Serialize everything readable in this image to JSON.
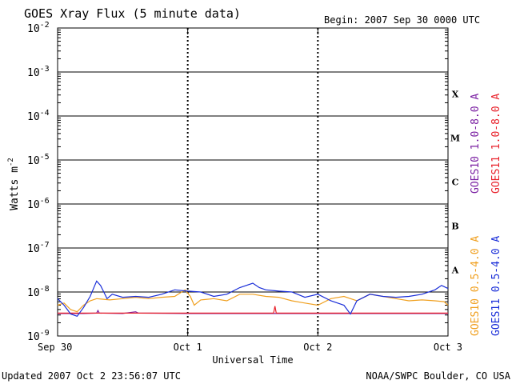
{
  "chart_data": {
    "type": "line",
    "title": "GOES Xray Flux (5 minute data)",
    "begin_label": "Begin:  2007 Sep 30 0000 UTC",
    "ylabel": "Watts m",
    "ylabel_sup": "-2",
    "xlabel": "Universal Time",
    "y_scale": "log",
    "ylim": [
      1e-09,
      0.01
    ],
    "xlim": [
      0,
      3
    ],
    "x_ticks": [
      {
        "x": 0,
        "label": "Sep 30"
      },
      {
        "x": 1,
        "label": "Oct 1"
      },
      {
        "x": 2,
        "label": "Oct 2"
      },
      {
        "x": 3,
        "label": "Oct 3"
      }
    ],
    "y_ticks": [
      {
        "base": "10",
        "exp": "-2",
        "value": -2
      },
      {
        "base": "10",
        "exp": "-3",
        "value": -3
      },
      {
        "base": "10",
        "exp": "-4",
        "value": -4
      },
      {
        "base": "10",
        "exp": "-5",
        "value": -5
      },
      {
        "base": "10",
        "exp": "-6",
        "value": -6
      },
      {
        "base": "10",
        "exp": "-7",
        "value": -7
      },
      {
        "base": "10",
        "exp": "-8",
        "value": -8
      },
      {
        "base": "10",
        "exp": "-9",
        "value": -9
      }
    ],
    "flare_classes": [
      {
        "label": "X",
        "log_center": -3.5
      },
      {
        "label": "M",
        "log_center": -4.5
      },
      {
        "label": "C",
        "log_center": -5.5
      },
      {
        "label": "B",
        "log_center": -6.5
      },
      {
        "label": "A",
        "log_center": -7.5
      }
    ],
    "series": [
      {
        "name": "GOES10 1.0-8.0 A",
        "color": "#7a1fa2",
        "points": [
          [
            0.0,
            -8.49
          ],
          [
            0.2,
            -8.49
          ],
          [
            0.3,
            -8.48
          ],
          [
            0.31,
            -8.42
          ],
          [
            0.32,
            -8.48
          ],
          [
            0.5,
            -8.49
          ],
          [
            0.6,
            -8.45
          ],
          [
            0.62,
            -8.48
          ],
          [
            1.0,
            -8.49
          ],
          [
            1.5,
            -8.49
          ],
          [
            2.0,
            -8.49
          ],
          [
            2.5,
            -8.49
          ],
          [
            3.0,
            -8.49
          ]
        ]
      },
      {
        "name": "GOES11 1.0-8.0 A",
        "color": "#e8202a",
        "points": [
          [
            0.0,
            -8.48
          ],
          [
            0.5,
            -8.48
          ],
          [
            1.0,
            -8.48
          ],
          [
            1.5,
            -8.48
          ],
          [
            1.66,
            -8.48
          ],
          [
            1.67,
            -8.32
          ],
          [
            1.68,
            -8.48
          ],
          [
            2.0,
            -8.48
          ],
          [
            2.5,
            -8.48
          ],
          [
            3.0,
            -8.48
          ]
        ]
      },
      {
        "name": "GOES10 0.5-4.0 A",
        "color": "#f0a020",
        "points": [
          [
            0.0,
            -8.3
          ],
          [
            0.05,
            -8.25
          ],
          [
            0.1,
            -8.4
          ],
          [
            0.15,
            -8.45
          ],
          [
            0.2,
            -8.3
          ],
          [
            0.25,
            -8.2
          ],
          [
            0.3,
            -8.15
          ],
          [
            0.4,
            -8.18
          ],
          [
            0.5,
            -8.15
          ],
          [
            0.6,
            -8.12
          ],
          [
            0.7,
            -8.15
          ],
          [
            0.8,
            -8.12
          ],
          [
            0.9,
            -8.1
          ],
          [
            0.98,
            -7.95
          ],
          [
            1.02,
            -8.1
          ],
          [
            1.05,
            -8.3
          ],
          [
            1.1,
            -8.18
          ],
          [
            1.2,
            -8.15
          ],
          [
            1.3,
            -8.2
          ],
          [
            1.4,
            -8.05
          ],
          [
            1.5,
            -8.05
          ],
          [
            1.6,
            -8.1
          ],
          [
            1.7,
            -8.12
          ],
          [
            1.8,
            -8.2
          ],
          [
            1.9,
            -8.25
          ],
          [
            2.0,
            -8.3
          ],
          [
            2.1,
            -8.15
          ],
          [
            2.2,
            -8.1
          ],
          [
            2.3,
            -8.2
          ],
          [
            2.4,
            -8.05
          ],
          [
            2.5,
            -8.1
          ],
          [
            2.6,
            -8.15
          ],
          [
            2.7,
            -8.2
          ],
          [
            2.8,
            -8.18
          ],
          [
            2.9,
            -8.2
          ],
          [
            2.97,
            -8.22
          ],
          [
            3.0,
            -8.3
          ]
        ]
      },
      {
        "name": "GOES11 0.5-4.0 A",
        "color": "#1a2ed8",
        "points": [
          [
            0.0,
            -8.15
          ],
          [
            0.05,
            -8.3
          ],
          [
            0.1,
            -8.5
          ],
          [
            0.15,
            -8.55
          ],
          [
            0.2,
            -8.35
          ],
          [
            0.25,
            -8.1
          ],
          [
            0.3,
            -7.75
          ],
          [
            0.33,
            -7.85
          ],
          [
            0.38,
            -8.15
          ],
          [
            0.42,
            -8.05
          ],
          [
            0.5,
            -8.12
          ],
          [
            0.6,
            -8.1
          ],
          [
            0.7,
            -8.12
          ],
          [
            0.8,
            -8.05
          ],
          [
            0.9,
            -7.95
          ],
          [
            1.0,
            -7.98
          ],
          [
            1.1,
            -8.0
          ],
          [
            1.2,
            -8.1
          ],
          [
            1.3,
            -8.05
          ],
          [
            1.4,
            -7.9
          ],
          [
            1.5,
            -7.8
          ],
          [
            1.55,
            -7.9
          ],
          [
            1.6,
            -7.95
          ],
          [
            1.7,
            -7.98
          ],
          [
            1.8,
            -8.0
          ],
          [
            1.9,
            -8.12
          ],
          [
            2.0,
            -8.05
          ],
          [
            2.1,
            -8.2
          ],
          [
            2.2,
            -8.3
          ],
          [
            2.25,
            -8.5
          ],
          [
            2.3,
            -8.2
          ],
          [
            2.4,
            -8.05
          ],
          [
            2.5,
            -8.1
          ],
          [
            2.6,
            -8.12
          ],
          [
            2.7,
            -8.1
          ],
          [
            2.8,
            -8.05
          ],
          [
            2.9,
            -7.95
          ],
          [
            2.95,
            -7.85
          ],
          [
            3.0,
            -7.92
          ]
        ]
      }
    ],
    "legend_placement": "right",
    "grid": "horizontal decades"
  },
  "footer": {
    "updated": "Updated 2007 Oct  2 23:56:07 UTC",
    "credit": "NOAA/SWPC Boulder, CO USA"
  }
}
